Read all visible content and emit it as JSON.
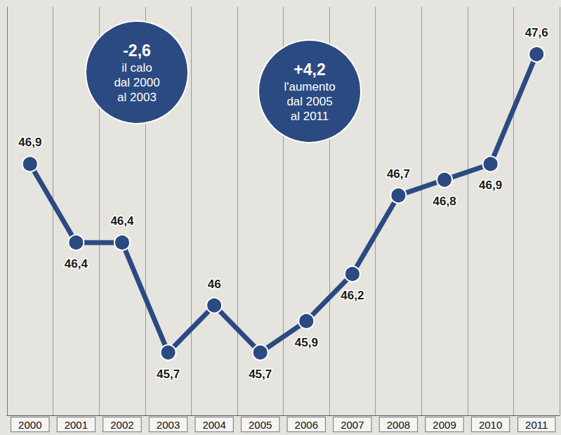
{
  "chart_data": {
    "type": "line",
    "categories": [
      "2000",
      "2001",
      "2002",
      "2003",
      "2004",
      "2005",
      "2006",
      "2007",
      "2008",
      "2009",
      "2010",
      "2011"
    ],
    "values": [
      46.9,
      46.4,
      46.4,
      45.7,
      46,
      45.7,
      45.9,
      46.2,
      46.7,
      46.8,
      46.9,
      47.6
    ],
    "value_labels": [
      "46,9",
      "46,4",
      "46,4",
      "45,7",
      "46",
      "45,7",
      "45,9",
      "46,2",
      "46,7",
      "46,8",
      "46,9",
      "47,6"
    ],
    "color": "#2b4a82",
    "marker": "circle",
    "data_labels": true,
    "ylim": [
      45.3,
      47.9
    ],
    "tick_labels": "x",
    "grid": true,
    "annotations": [
      {
        "value": -2.6,
        "label": "-2,6",
        "lines": [
          "il calo",
          "dal 2000",
          "al 2003"
        ]
      },
      {
        "value": 4.2,
        "label": "+4,2",
        "lines": [
          "l'aumento",
          "dal 2005",
          "al 2011"
        ]
      }
    ]
  }
}
